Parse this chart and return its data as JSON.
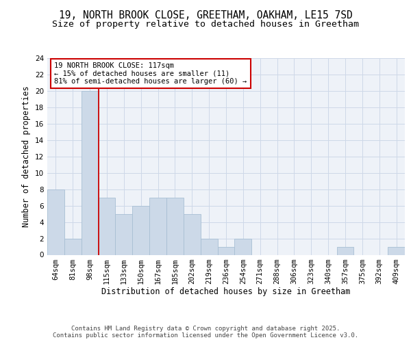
{
  "title_line1": "19, NORTH BROOK CLOSE, GREETHAM, OAKHAM, LE15 7SD",
  "title_line2": "Size of property relative to detached houses in Greetham",
  "xlabel": "Distribution of detached houses by size in Greetham",
  "ylabel": "Number of detached properties",
  "categories": [
    "64sqm",
    "81sqm",
    "98sqm",
    "115sqm",
    "133sqm",
    "150sqm",
    "167sqm",
    "185sqm",
    "202sqm",
    "219sqm",
    "236sqm",
    "254sqm",
    "271sqm",
    "288sqm",
    "306sqm",
    "323sqm",
    "340sqm",
    "357sqm",
    "375sqm",
    "392sqm",
    "409sqm"
  ],
  "values": [
    8,
    2,
    20,
    7,
    5,
    6,
    7,
    7,
    5,
    2,
    1,
    2,
    0,
    0,
    0,
    0,
    0,
    1,
    0,
    0,
    1
  ],
  "bar_color": "#ccd9e8",
  "bar_edgecolor": "#a8bfd4",
  "vline_color": "#cc0000",
  "vline_x": 2.5,
  "annotation_text": "19 NORTH BROOK CLOSE: 117sqm\n← 15% of detached houses are smaller (11)\n81% of semi-detached houses are larger (60) →",
  "annotation_box_color": "white",
  "annotation_box_edgecolor": "#cc0000",
  "grid_color": "#cdd8e8",
  "background_color": "#eef2f8",
  "ylim": [
    0,
    24
  ],
  "yticks": [
    0,
    2,
    4,
    6,
    8,
    10,
    12,
    14,
    16,
    18,
    20,
    22,
    24
  ],
  "footer_text": "Contains HM Land Registry data © Crown copyright and database right 2025.\nContains public sector information licensed under the Open Government Licence v3.0.",
  "title_fontsize": 10.5,
  "subtitle_fontsize": 9.5,
  "tick_fontsize": 7.5,
  "ylabel_fontsize": 8.5,
  "xlabel_fontsize": 8.5,
  "annotation_fontsize": 7.5,
  "footer_fontsize": 6.5
}
